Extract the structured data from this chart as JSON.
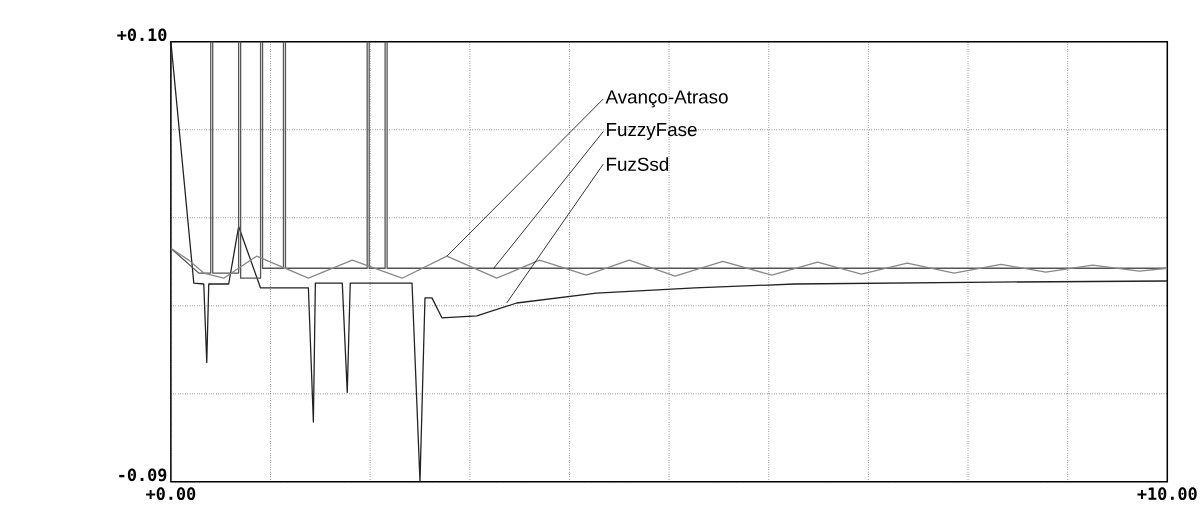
{
  "chart_data": {
    "type": "line",
    "xlim": [
      0,
      10
    ],
    "ylim": [
      -0.09,
      0.1
    ],
    "grid": true,
    "xticks": [
      {
        "value": 0,
        "label": "+0.00"
      },
      {
        "value": 1,
        "label": null
      },
      {
        "value": 2,
        "label": null
      },
      {
        "value": 3,
        "label": null
      },
      {
        "value": 4,
        "label": null
      },
      {
        "value": 5,
        "label": null
      },
      {
        "value": 6,
        "label": null
      },
      {
        "value": 7,
        "label": null
      },
      {
        "value": 8,
        "label": null
      },
      {
        "value": 9,
        "label": null
      },
      {
        "value": 10,
        "label": "+10.00"
      }
    ],
    "yticks": [
      {
        "value": -0.09,
        "label": "-0.09"
      },
      {
        "value": -0.052,
        "label": null
      },
      {
        "value": -0.014,
        "label": null
      },
      {
        "value": 0.024,
        "label": null
      },
      {
        "value": 0.062,
        "label": null
      },
      {
        "value": 0.1,
        "label": "+0.10"
      }
    ],
    "series": [
      {
        "color": "#222222",
        "x": [
          0,
          0.23,
          0.33,
          0.36,
          0.38,
          0.58,
          0.68,
          0.9,
          1.38,
          1.43,
          1.45,
          1.72,
          1.77,
          1.8,
          2.42,
          2.5,
          2.55,
          2.62,
          2.72,
          3.07,
          3.47,
          4.27,
          5.26,
          6.26,
          8.26,
          10
        ],
        "values": [
          0.1,
          -0.0042,
          -0.0046,
          -0.0385,
          -0.0046,
          -0.0046,
          0.0202,
          -0.0063,
          -0.0063,
          -0.0642,
          -0.0042,
          -0.0042,
          -0.0514,
          -0.0042,
          -0.0042,
          -0.09,
          -0.0106,
          -0.0106,
          -0.0192,
          -0.0184,
          -0.0128,
          -0.0085,
          -0.0063,
          -0.0046,
          -0.0038,
          -0.0033
        ]
      },
      {
        "color": "#555555",
        "x": [
          0,
          0.28,
          0.4,
          0.4,
          0.42,
          0.42,
          0.68,
          0.68,
          0.7,
          0.7,
          0.9,
          0.9,
          0.92,
          0.92,
          1.13,
          1.13,
          1.15,
          1.15,
          1.97,
          1.97,
          1.99,
          1.99,
          2.15,
          2.15,
          2.17,
          2.17,
          10
        ],
        "values": [
          0.0108,
          0.0001,
          0.0001,
          0.1,
          0.1,
          0.0001,
          0.0001,
          0.1,
          0.1,
          -0.0021,
          -0.0021,
          0.1,
          0.1,
          0.0022,
          0.0022,
          0.1,
          0.1,
          0.0022,
          0.0022,
          0.1,
          0.1,
          0.0022,
          0.0022,
          0.1,
          0.1,
          0.0022,
          0.0022
        ]
      },
      {
        "color": "#888888",
        "x": [
          0,
          0.18,
          0.33,
          0.53,
          0.86,
          1.38,
          1.82,
          2.32,
          2.77,
          3.27,
          3.7,
          4.17,
          4.6,
          5.06,
          5.54,
          6.03,
          6.49,
          6.93,
          7.39,
          7.86,
          8.33,
          8.78,
          9.25,
          9.72,
          10
        ],
        "values": [
          0.0108,
          0.0057,
          0.0001,
          -0.0021,
          0.0074,
          -0.0021,
          0.0057,
          -0.0021,
          0.0074,
          -0.0021,
          0.0057,
          -0.0008,
          0.0057,
          -0.0012,
          0.0052,
          -0.0008,
          0.0048,
          -0.0003,
          0.0044,
          0.0001,
          0.0039,
          0.0005,
          0.0035,
          0.001,
          0.0022
        ]
      }
    ],
    "annotations": [
      {
        "text": "Avanço-Atraso",
        "x": 2.77,
        "y": 0.0074
      },
      {
        "text": "FuzzyFase",
        "x": 3.24,
        "y": 0.0022
      },
      {
        "text": "FuzSsd",
        "x": 3.37,
        "y": -0.0128
      }
    ]
  }
}
